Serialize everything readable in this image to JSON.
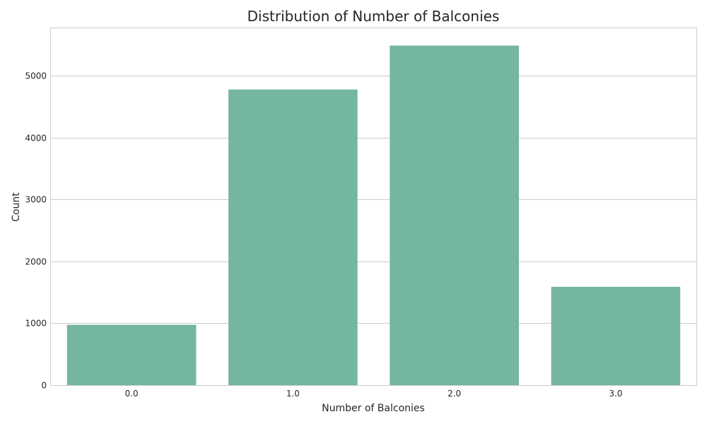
{
  "chart_data": {
    "type": "bar",
    "title": "Distribution of Number of Balconies",
    "xlabel": "Number of Balconies",
    "ylabel": "Count",
    "categories": [
      "0.0",
      "1.0",
      "2.0",
      "3.0"
    ],
    "values": [
      975,
      4780,
      5490,
      1590
    ],
    "ylim": [
      0,
      5770
    ],
    "yticks": [
      0,
      1000,
      2000,
      3000,
      4000,
      5000
    ],
    "grid": true,
    "bar_color": "#74b6a0",
    "grid_color": "#cccccc",
    "text_color": "#262626"
  }
}
